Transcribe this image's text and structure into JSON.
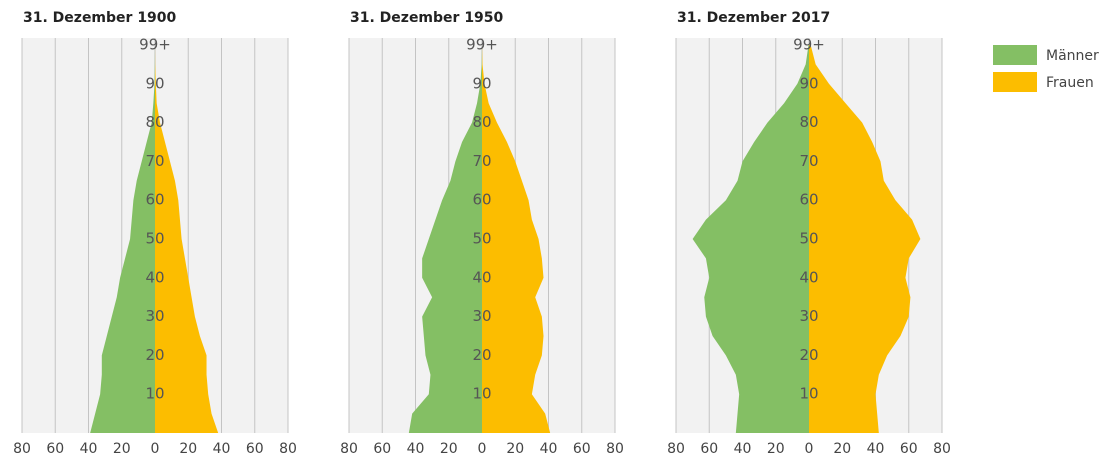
{
  "chart_data": [
    {
      "type": "pyramid",
      "title": "31. Dezember 1900",
      "categories": [
        null,
        null,
        "10",
        null,
        "20",
        null,
        "30",
        null,
        "40",
        null,
        "50",
        null,
        "60",
        null,
        "70",
        null,
        "80",
        null,
        "90",
        null,
        "99+"
      ],
      "series": [
        {
          "name": "Männer",
          "color": "#84bf64",
          "values": [
            -39,
            -36,
            -33,
            -32,
            -32,
            -29,
            -26,
            -23,
            -21,
            -18,
            -15,
            -14,
            -13,
            -11,
            -8,
            -5,
            -2,
            -1,
            -0.3,
            -0.1,
            0
          ]
        },
        {
          "name": "Frauen",
          "color": "#fcbd00",
          "values": [
            38,
            34,
            32,
            31,
            31,
            27,
            24,
            22,
            20,
            18,
            16,
            15,
            14,
            12,
            9,
            6,
            3,
            1,
            0.5,
            0.1,
            0
          ]
        }
      ],
      "xlim": [
        -80,
        80
      ],
      "xticks": [
        {
          "value": -80,
          "label": "80"
        },
        {
          "value": -60,
          "label": "60"
        },
        {
          "value": -40,
          "label": "40"
        },
        {
          "value": -20,
          "label": "20"
        },
        0,
        20,
        40,
        60,
        80
      ],
      "grid": true
    },
    {
      "type": "pyramid",
      "title": "31. Dezember 1950",
      "categories": [
        null,
        null,
        "10",
        null,
        "20",
        null,
        "30",
        null,
        "40",
        null,
        "50",
        null,
        "60",
        null,
        "70",
        null,
        "80",
        null,
        "90",
        null,
        "99+"
      ],
      "series": [
        {
          "name": "Männer",
          "color": "#84bf64",
          "values": [
            -44,
            -42,
            -32,
            -31,
            -34,
            -35,
            -36,
            -30,
            -36,
            -36,
            -32,
            -28,
            -24,
            -19,
            -16,
            -12,
            -6,
            -3,
            -1,
            -0.2,
            0
          ]
        },
        {
          "name": "Frauen",
          "color": "#fcbd00",
          "values": [
            41,
            38,
            30,
            32,
            36,
            37,
            36,
            32,
            37,
            36,
            34,
            30,
            28,
            24,
            20,
            15,
            9,
            4,
            1.5,
            0.3,
            0
          ]
        }
      ],
      "xlim": [
        -80,
        80
      ],
      "xticks": [
        {
          "value": -80,
          "label": "80"
        },
        {
          "value": -60,
          "label": "60"
        },
        {
          "value": -40,
          "label": "40"
        },
        {
          "value": -20,
          "label": "20"
        },
        0,
        20,
        40,
        60,
        80
      ],
      "grid": true
    },
    {
      "type": "pyramid",
      "title": "31. Dezember 2017",
      "categories": [
        null,
        null,
        "10",
        null,
        "20",
        null,
        "30",
        null,
        "40",
        null,
        "50",
        null,
        "60",
        null,
        "70",
        null,
        "80",
        null,
        "90",
        null,
        "99+"
      ],
      "series": [
        {
          "name": "Männer",
          "color": "#84bf64",
          "values": [
            -44,
            -43,
            -42,
            -44,
            -50,
            -58,
            -62,
            -63,
            -60,
            -62,
            -70,
            -62,
            -50,
            -43,
            -40,
            -33,
            -25,
            -15,
            -7,
            -2,
            -0.3
          ]
        },
        {
          "name": "Frauen",
          "color": "#fcbd00",
          "values": [
            42,
            41,
            40,
            42,
            47,
            55,
            60,
            61,
            58,
            60,
            67,
            62,
            52,
            45,
            43,
            38,
            32,
            22,
            12,
            4,
            1
          ]
        }
      ],
      "xlim": [
        -80,
        80
      ],
      "xticks": [
        {
          "value": -80,
          "label": "80"
        },
        {
          "value": -60,
          "label": "60"
        },
        {
          "value": -40,
          "label": "40"
        },
        {
          "value": -20,
          "label": "20"
        },
        0,
        20,
        40,
        60,
        80
      ],
      "grid": true,
      "legend": "right"
    }
  ]
}
